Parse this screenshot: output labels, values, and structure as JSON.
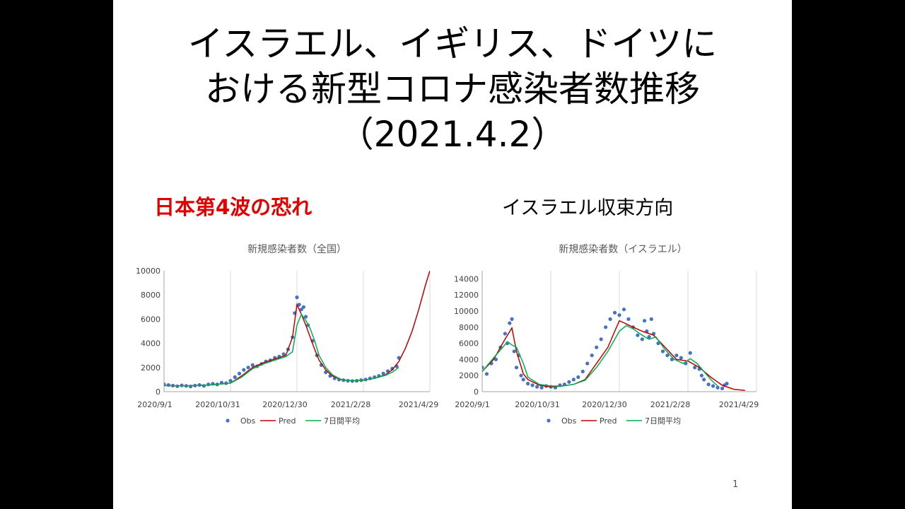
{
  "title": {
    "line1": "イスラエル、イギリス、ドイツに",
    "line2": "おける新型コロナ感染者数推移",
    "line3": "（2021.4.2）"
  },
  "subtitle_left": "日本第4波の恐れ",
  "subtitle_right": "イスラエル収束方向",
  "page_number": "1",
  "colors": {
    "obs": "#4472C4",
    "pred": "#C00000",
    "avg": "#00B050",
    "left_subtitle": "#E00000"
  },
  "chart_data": [
    {
      "type": "scatter",
      "title": "新規感染者数（全国）",
      "x_ticks": [
        "2020/9/1",
        "2020/10/31",
        "2020/12/30",
        "2021/2/28",
        "2021/4/29"
      ],
      "xlim_days": [
        0,
        240
      ],
      "ylim": [
        0,
        10000
      ],
      "y_ticks": [
        0,
        2000,
        4000,
        6000,
        8000,
        10000
      ],
      "grid": "vertical",
      "legend_position": "bottom",
      "legend": [
        "Obs",
        "Pred",
        "7日間平均"
      ],
      "series": [
        {
          "name": "Obs",
          "kind": "points",
          "x": [
            0,
            4,
            8,
            12,
            16,
            20,
            24,
            28,
            32,
            36,
            40,
            44,
            48,
            52,
            56,
            60,
            64,
            68,
            72,
            76,
            80,
            84,
            88,
            92,
            96,
            100,
            104,
            108,
            112,
            116,
            118,
            120,
            122,
            124,
            126,
            128,
            130,
            134,
            138,
            142,
            146,
            150,
            154,
            158,
            162,
            166,
            170,
            174,
            178,
            182,
            186,
            190,
            194,
            198,
            202,
            206,
            210,
            212
          ],
          "y": [
            600,
            550,
            500,
            450,
            520,
            480,
            430,
            500,
            550,
            480,
            600,
            650,
            600,
            750,
            700,
            900,
            1200,
            1500,
            1800,
            2000,
            2200,
            2100,
            2300,
            2500,
            2600,
            2800,
            2900,
            3100,
            3500,
            4500,
            6500,
            7800,
            7200,
            6800,
            7000,
            6200,
            5500,
            4200,
            3000,
            2200,
            1600,
            1300,
            1100,
            1000,
            950,
            900,
            880,
            900,
            950,
            1000,
            1100,
            1200,
            1300,
            1500,
            1700,
            1900,
            2100,
            2800
          ]
        },
        {
          "name": "Pred",
          "kind": "line",
          "x": [
            0,
            20,
            40,
            60,
            70,
            80,
            90,
            100,
            110,
            116,
            120,
            124,
            128,
            132,
            136,
            140,
            146,
            152,
            160,
            170,
            180,
            190,
            200,
            206,
            212,
            218,
            224,
            230,
            236,
            240
          ],
          "y": [
            500,
            480,
            550,
            700,
            1300,
            2000,
            2400,
            2700,
            3000,
            4500,
            7200,
            6400,
            5500,
            4500,
            3500,
            2600,
            1800,
            1300,
            1000,
            900,
            950,
            1100,
            1400,
            1800,
            2500,
            3600,
            5000,
            6800,
            8800,
            10000
          ]
        },
        {
          "name": "7日間平均",
          "kind": "line",
          "x": [
            0,
            20,
            40,
            60,
            70,
            80,
            90,
            100,
            110,
            116,
            120,
            124,
            128,
            132,
            136,
            140,
            146,
            152,
            160,
            170,
            180,
            190,
            200,
            206,
            212
          ],
          "y": [
            500,
            480,
            550,
            700,
            1200,
            1900,
            2300,
            2600,
            2900,
            3300,
            5500,
            6400,
            5900,
            5200,
            4200,
            3000,
            2000,
            1400,
            1000,
            900,
            950,
            1100,
            1350,
            1600,
            2000
          ]
        }
      ]
    },
    {
      "type": "scatter",
      "title": "新規感染者数（イスラエル）",
      "x_ticks": [
        "2020/9/1",
        "2020/10/31",
        "2020/12/30",
        "2021/2/28",
        "2021/4/29"
      ],
      "xlim_days": [
        0,
        240
      ],
      "ylim": [
        0,
        15000
      ],
      "y_ticks": [
        0,
        2000,
        4000,
        6000,
        8000,
        10000,
        12000,
        14000
      ],
      "grid": "vertical",
      "legend_position": "bottom",
      "legend": [
        "Obs",
        "Pred",
        "7日間平均"
      ],
      "series": [
        {
          "name": "Obs",
          "kind": "points",
          "x": [
            0,
            4,
            8,
            12,
            16,
            20,
            22,
            24,
            26,
            28,
            30,
            32,
            34,
            36,
            40,
            44,
            48,
            52,
            56,
            60,
            64,
            68,
            72,
            76,
            80,
            84,
            88,
            92,
            96,
            100,
            104,
            108,
            112,
            116,
            120,
            124,
            128,
            132,
            136,
            140,
            142,
            144,
            146,
            148,
            150,
            154,
            158,
            162,
            166,
            170,
            174,
            178,
            182,
            186,
            190,
            192,
            194,
            198,
            202,
            206,
            210,
            212,
            214
          ],
          "y": [
            3000,
            2200,
            3500,
            4000,
            5500,
            7200,
            6000,
            8500,
            9000,
            5000,
            3000,
            4500,
            2000,
            1500,
            1000,
            800,
            600,
            500,
            700,
            600,
            500,
            800,
            900,
            1200,
            1500,
            1800,
            2500,
            3500,
            4500,
            5500,
            6500,
            8000,
            9000,
            9800,
            9500,
            10200,
            9000,
            8000,
            7000,
            6500,
            8800,
            7500,
            6800,
            9000,
            7200,
            6000,
            5000,
            4500,
            4000,
            4500,
            4200,
            3500,
            4800,
            3000,
            2800,
            2000,
            1500,
            900,
            700,
            500,
            400,
            800,
            1000
          ]
        },
        {
          "name": "Pred",
          "kind": "line",
          "x": [
            0,
            10,
            20,
            26,
            30,
            36,
            40,
            50,
            60,
            70,
            80,
            90,
            100,
            110,
            116,
            120,
            126,
            132,
            140,
            150,
            160,
            170,
            180,
            190,
            200,
            210,
            220,
            230
          ],
          "y": [
            2500,
            4000,
            6500,
            7900,
            5000,
            2200,
            1500,
            800,
            600,
            700,
            900,
            1500,
            3500,
            5500,
            7500,
            8800,
            8400,
            8000,
            7500,
            7000,
            5500,
            4000,
            3800,
            3000,
            1800,
            800,
            300,
            150
          ]
        },
        {
          "name": "7日間平均",
          "kind": "line",
          "x": [
            0,
            10,
            18,
            22,
            26,
            30,
            36,
            40,
            50,
            60,
            70,
            80,
            90,
            100,
            110,
            116,
            120,
            126,
            132,
            140,
            146,
            152,
            160,
            168,
            176,
            182,
            188,
            194,
            200,
            206
          ],
          "y": [
            2500,
            4200,
            5500,
            6200,
            5800,
            5500,
            3500,
            1800,
            900,
            700,
            700,
            900,
            1400,
            3000,
            5000,
            6500,
            7500,
            8200,
            7800,
            7000,
            6500,
            6800,
            5200,
            4000,
            3500,
            4100,
            3500,
            2500,
            1500,
            700
          ]
        }
      ]
    }
  ]
}
